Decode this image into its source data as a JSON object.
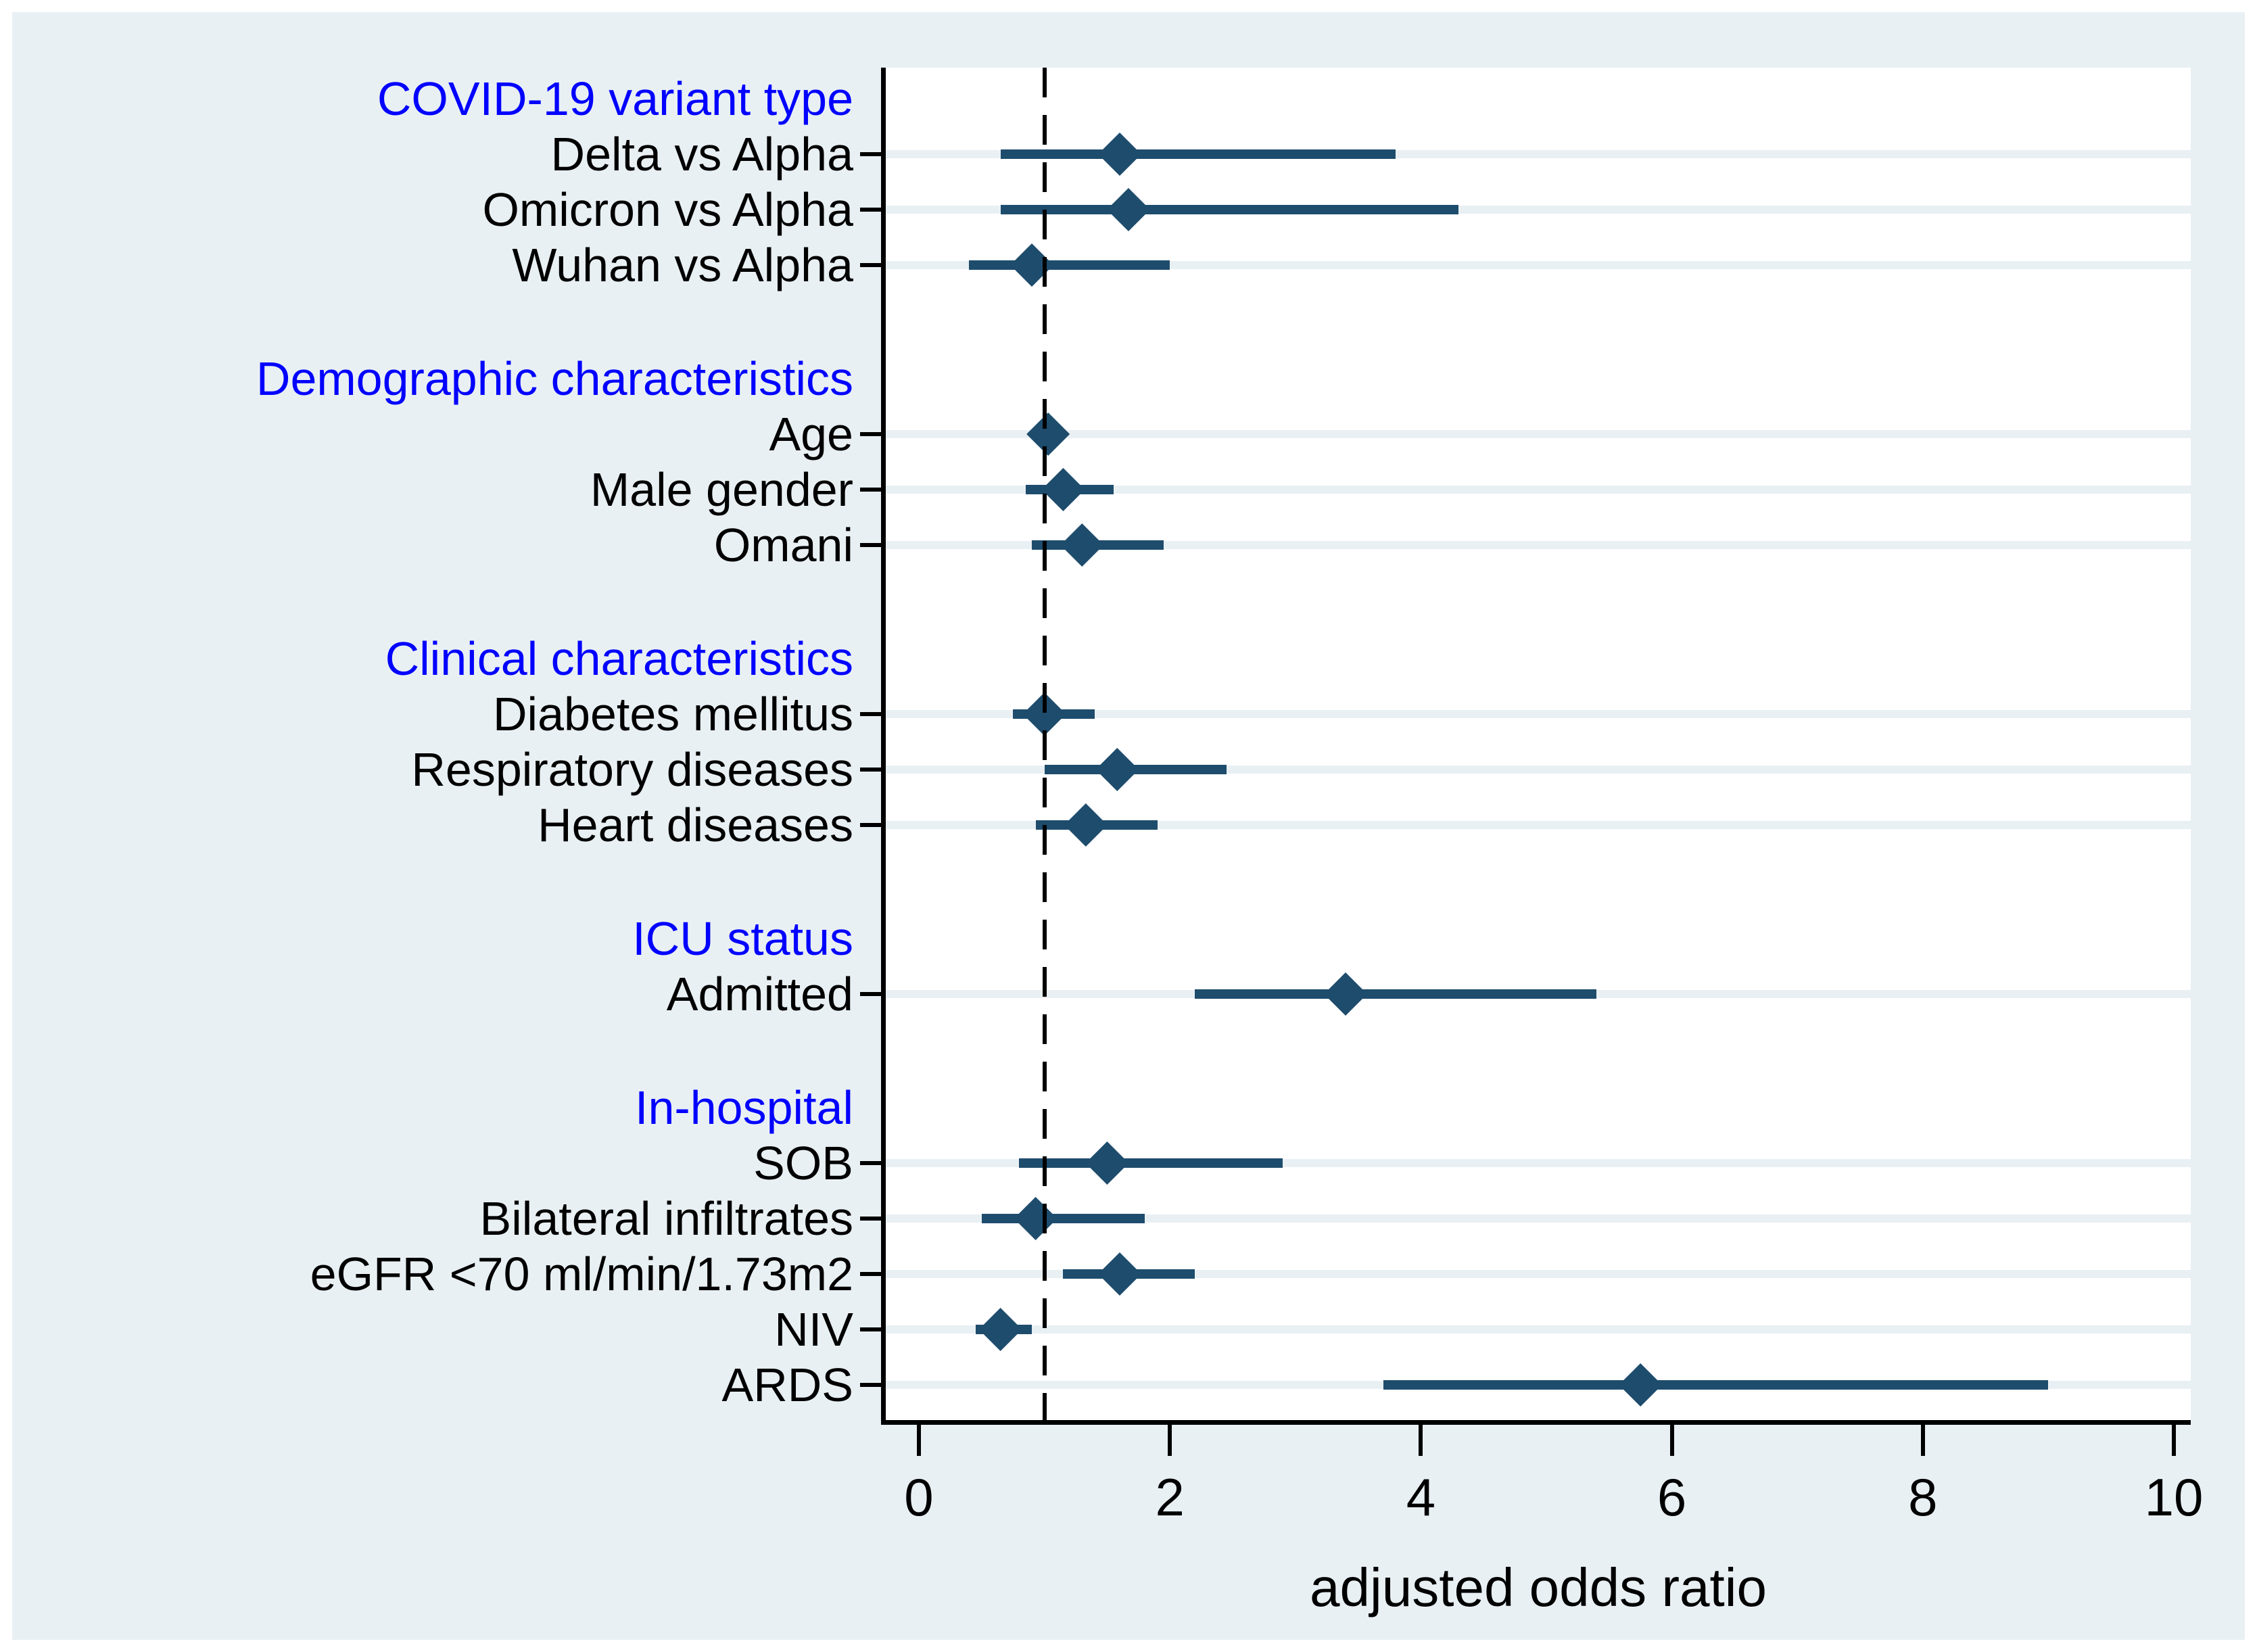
{
  "chart_data": {
    "type": "scatter",
    "subtype": "forest-plot",
    "xlabel": "adjusted odds ratio",
    "x_ticks": [
      0,
      2,
      4,
      6,
      8,
      10
    ],
    "xlim": [
      0,
      10.4
    ],
    "reference_line_x": 1,
    "grid": "horizontal-stripes",
    "legend": "none",
    "sections": [
      {
        "header": "COVID-19 variant type",
        "items": [
          {
            "label": "Delta vs Alpha",
            "or": 1.6,
            "ci_low": 0.65,
            "ci_high": 3.8
          },
          {
            "label": "Omicron vs Alpha",
            "or": 1.67,
            "ci_low": 0.65,
            "ci_high": 4.3
          },
          {
            "label": "Wuhan vs Alpha",
            "or": 0.9,
            "ci_low": 0.4,
            "ci_high": 2.0
          }
        ]
      },
      {
        "header": "Demographic characteristics",
        "items": [
          {
            "label": "Age",
            "or": 1.03,
            "ci_low": 0.98,
            "ci_high": 1.1
          },
          {
            "label": "Male gender",
            "or": 1.15,
            "ci_low": 0.85,
            "ci_high": 1.55
          },
          {
            "label": "Omani",
            "or": 1.3,
            "ci_low": 0.9,
            "ci_high": 1.95
          }
        ]
      },
      {
        "header": "Clinical characteristics",
        "items": [
          {
            "label": "Diabetes mellitus",
            "or": 1.0,
            "ci_low": 0.75,
            "ci_high": 1.4
          },
          {
            "label": "Respiratory diseases",
            "or": 1.58,
            "ci_low": 1.0,
            "ci_high": 2.45
          },
          {
            "label": "Heart diseases",
            "or": 1.33,
            "ci_low": 0.93,
            "ci_high": 1.9
          }
        ]
      },
      {
        "header": "ICU status",
        "items": [
          {
            "label": "Admitted",
            "or": 3.4,
            "ci_low": 2.2,
            "ci_high": 5.4
          }
        ]
      },
      {
        "header": "In-hospital",
        "items": [
          {
            "label": "SOB",
            "or": 1.5,
            "ci_low": 0.8,
            "ci_high": 2.9
          },
          {
            "label": "Bilateral infiltrates",
            "or": 0.93,
            "ci_low": 0.5,
            "ci_high": 1.8
          },
          {
            "label": "eGFR <70 ml/min/1.73m2",
            "or": 1.6,
            "ci_low": 1.15,
            "ci_high": 2.2
          },
          {
            "label": "NIV",
            "or": 0.65,
            "ci_low": 0.45,
            "ci_high": 0.9
          },
          {
            "label": "ARDS",
            "or": 5.75,
            "ci_low": 3.7,
            "ci_high": 9.0
          }
        ]
      }
    ],
    "colors": {
      "figure_background": "#e9f0f3",
      "plot_background": "#ffffff",
      "stripe": "#e9f0f3",
      "marker": "#1e4c6d",
      "section_header_text": "#0000ff",
      "item_label_text": "#000000",
      "axis": "#000000",
      "reference_line": "#000000"
    }
  }
}
